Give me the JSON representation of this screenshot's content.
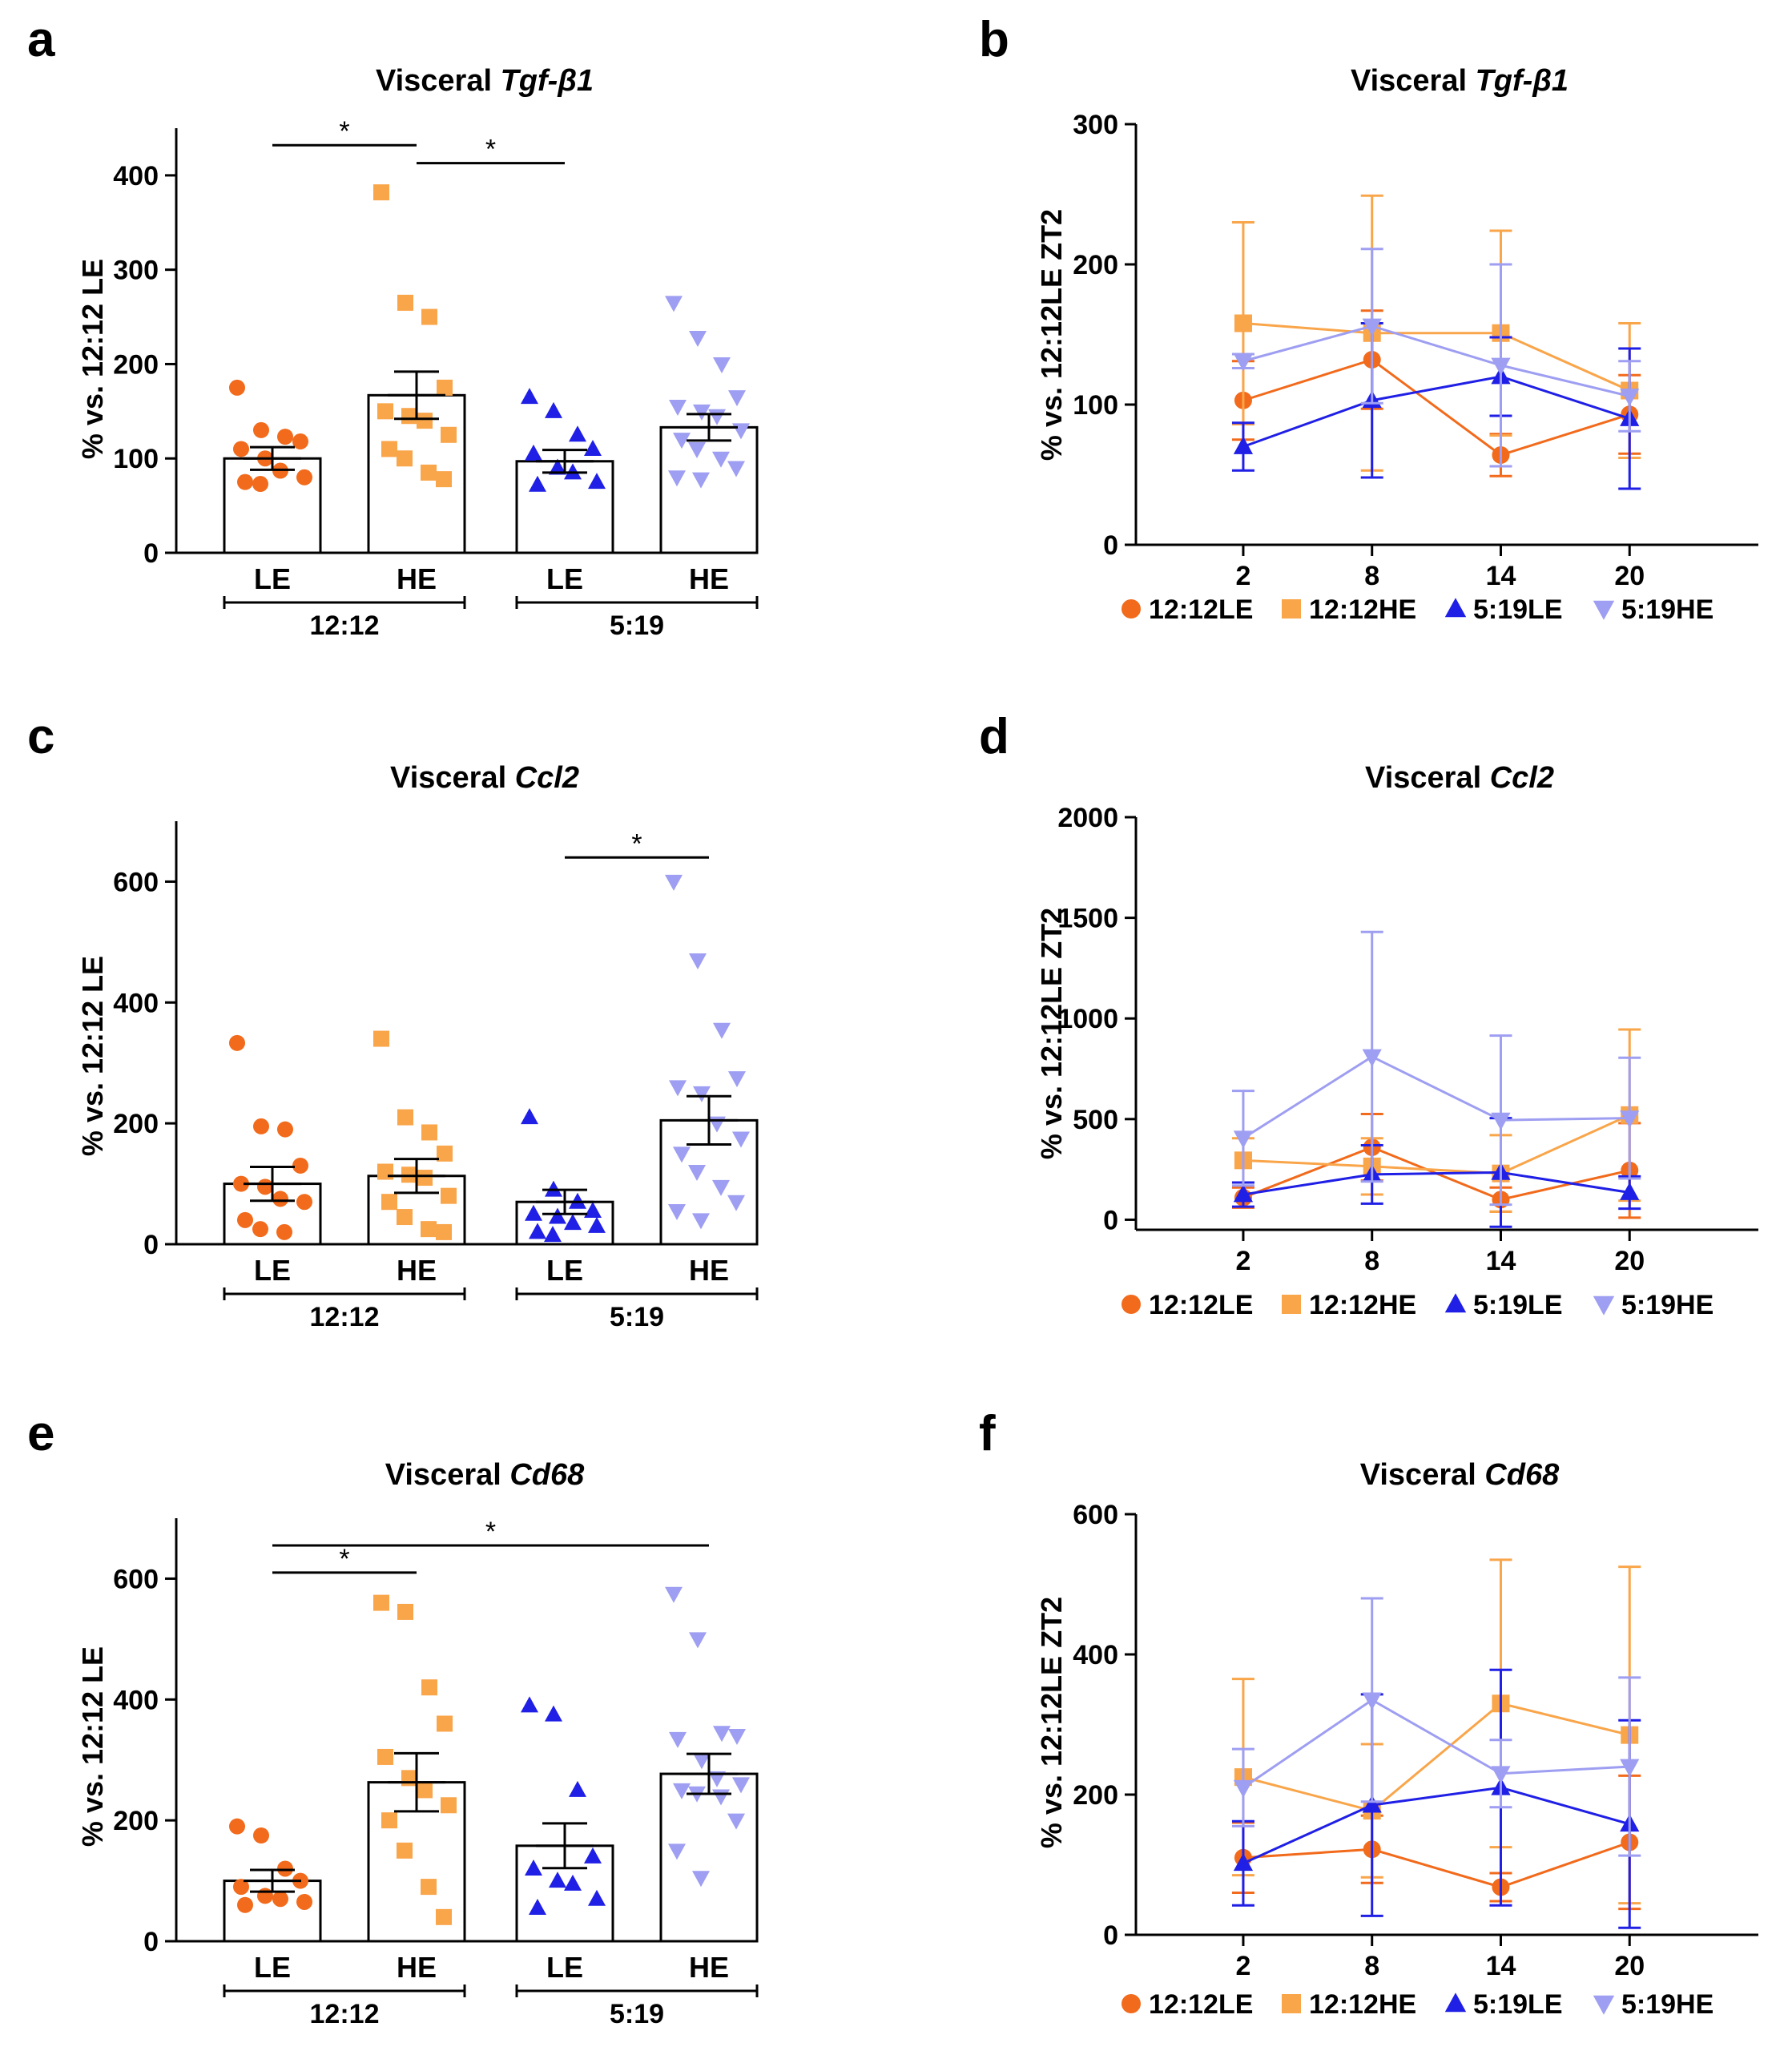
{
  "figure": {
    "colors": {
      "12:12LE": "#f26a1b",
      "12:12HE": "#f9a54a",
      "5:19LE": "#1f1fe6",
      "5:19HE": "#9e9ef2",
      "axis": "#000000"
    },
    "legend_labels": [
      "12:12LE",
      "12:12HE",
      "5:19LE",
      "5:19HE"
    ]
  },
  "chart_data": [
    {
      "panel": "a",
      "type": "bar",
      "title_prefix": "Visceral ",
      "title_gene": "Tgf-β1",
      "ylabel": "% vs. 12:12 LE",
      "ylim": [
        0,
        450
      ],
      "yticks": [
        0,
        100,
        200,
        300,
        400
      ],
      "categories": [
        "LE",
        "HE",
        "LE",
        "HE"
      ],
      "groups": [
        {
          "label": "12:12",
          "span": [
            0,
            1
          ]
        },
        {
          "label": "5:19",
          "span": [
            2,
            3
          ]
        }
      ],
      "markers": [
        "circle",
        "square",
        "triangle",
        "triangle-down"
      ],
      "series_keys": [
        "12:12LE",
        "12:12HE",
        "5:19LE",
        "5:19HE"
      ],
      "means": [
        100,
        167,
        97,
        133
      ],
      "sem": [
        12,
        25,
        12,
        14
      ],
      "points": [
        [
          175,
          130,
          123,
          118,
          110,
          100,
          87,
          80,
          75,
          73
        ],
        [
          382,
          265,
          250,
          175,
          150,
          145,
          140,
          125,
          110,
          100,
          85,
          78
        ],
        [
          165,
          150,
          125,
          110,
          105,
          90,
          85,
          75,
          72
        ],
        [
          265,
          228,
          200,
          165,
          155,
          150,
          145,
          130,
          120,
          110,
          100,
          90,
          80,
          78
        ]
      ],
      "significance": [
        {
          "from": 0,
          "to": 1,
          "y": 432,
          "label": "*"
        },
        {
          "from": 1,
          "to": 2,
          "y": 413,
          "label": "*"
        }
      ]
    },
    {
      "panel": "b",
      "type": "line",
      "title_prefix": "Visceral ",
      "title_gene": "Tgf-β1",
      "ylabel": "% vs. 12:12LE ZT2",
      "xlim": [
        -3,
        26
      ],
      "ylim": [
        0,
        300
      ],
      "yticks": [
        0,
        100,
        200,
        300
      ],
      "x": [
        2,
        8,
        14,
        20
      ],
      "series": [
        {
          "name": "12:12LE",
          "marker": "circle",
          "values": [
            103,
            132,
            64,
            93
          ],
          "err": [
            28,
            35,
            15,
            28
          ]
        },
        {
          "name": "12:12HE",
          "marker": "square",
          "values": [
            158,
            151,
            151,
            110
          ],
          "err": [
            72,
            98,
            73,
            48
          ]
        },
        {
          "name": "5:19LE",
          "marker": "triangle",
          "values": [
            70,
            103,
            120,
            90
          ],
          "err": [
            17,
            55,
            28,
            50
          ]
        },
        {
          "name": "5:19HE",
          "marker": "triangle-down",
          "values": [
            131,
            156,
            128,
            106
          ],
          "err": [
            5,
            55,
            72,
            25
          ]
        }
      ]
    },
    {
      "panel": "c",
      "type": "bar",
      "title_prefix": "Visceral ",
      "title_gene": "Ccl2",
      "ylabel": "% vs. 12:12 LE",
      "ylim": [
        0,
        700
      ],
      "yticks": [
        0,
        200,
        400,
        600
      ],
      "categories": [
        "LE",
        "HE",
        "LE",
        "HE"
      ],
      "groups": [
        {
          "label": "12:12",
          "span": [
            0,
            1
          ]
        },
        {
          "label": "5:19",
          "span": [
            2,
            3
          ]
        }
      ],
      "markers": [
        "circle",
        "square",
        "triangle",
        "triangle-down"
      ],
      "series_keys": [
        "12:12LE",
        "12:12HE",
        "5:19LE",
        "5:19HE"
      ],
      "means": [
        100,
        113,
        70,
        205
      ],
      "sem": [
        28,
        28,
        20,
        40
      ],
      "points": [
        [
          333,
          195,
          190,
          130,
          100,
          95,
          75,
          70,
          40,
          25,
          20
        ],
        [
          340,
          210,
          185,
          150,
          120,
          115,
          110,
          80,
          70,
          45,
          25,
          20
        ],
        [
          210,
          90,
          70,
          55,
          50,
          45,
          35,
          30,
          20,
          15
        ],
        [
          600,
          470,
          355,
          275,
          260,
          250,
          200,
          175,
          150,
          120,
          95,
          70,
          55,
          40
        ]
      ],
      "significance": [
        {
          "from": 2,
          "to": 3,
          "y": 640,
          "label": "*"
        }
      ]
    },
    {
      "panel": "d",
      "type": "line",
      "title_prefix": "Visceral ",
      "title_gene": "Ccl2",
      "ylabel": "% vs. 12:12LE ZT2",
      "xlim": [
        -3,
        26
      ],
      "ylim": [
        -50,
        2000
      ],
      "yticks": [
        0,
        500,
        1000,
        1500,
        2000
      ],
      "x": [
        2,
        8,
        14,
        20
      ],
      "series": [
        {
          "name": "12:12LE",
          "marker": "circle",
          "values": [
            110,
            360,
            100,
            245
          ],
          "err": [
            50,
            165,
            60,
            235
          ]
        },
        {
          "name": "12:12HE",
          "marker": "square",
          "values": [
            295,
            265,
            230,
            520
          ],
          "err": [
            110,
            140,
            190,
            425
          ]
        },
        {
          "name": "5:19LE",
          "marker": "triangle",
          "values": [
            125,
            225,
            235,
            135
          ],
          "err": [
            60,
            145,
            270,
            80
          ]
        },
        {
          "name": "5:19HE",
          "marker": "triangle-down",
          "values": [
            405,
            810,
            495,
            505
          ],
          "err": [
            235,
            620,
            420,
            300
          ]
        }
      ]
    },
    {
      "panel": "e",
      "type": "bar",
      "title_prefix": "Visceral ",
      "title_gene": "Cd68",
      "ylabel": "% vs. 12:12 LE",
      "ylim": [
        0,
        700
      ],
      "yticks": [
        0,
        200,
        400,
        600
      ],
      "categories": [
        "LE",
        "HE",
        "LE",
        "HE"
      ],
      "groups": [
        {
          "label": "12:12",
          "span": [
            0,
            1
          ]
        },
        {
          "label": "5:19",
          "span": [
            2,
            3
          ]
        }
      ],
      "markers": [
        "circle",
        "square",
        "triangle",
        "triangle-down"
      ],
      "series_keys": [
        "12:12LE",
        "12:12HE",
        "5:19LE",
        "5:19HE"
      ],
      "means": [
        100,
        263,
        158,
        277
      ],
      "sem": [
        18,
        48,
        37,
        33
      ],
      "points": [
        [
          190,
          175,
          120,
          100,
          90,
          75,
          70,
          65,
          60
        ],
        [
          560,
          545,
          420,
          360,
          305,
          270,
          250,
          225,
          200,
          150,
          90,
          40
        ],
        [
          390,
          375,
          250,
          140,
          120,
          100,
          95,
          70,
          55
        ],
        [
          575,
          500,
          345,
          340,
          335,
          300,
          270,
          260,
          250,
          245,
          240,
          200,
          150,
          105
        ]
      ],
      "significance": [
        {
          "from": 0,
          "to": 3,
          "y": 655,
          "label": "*"
        },
        {
          "from": 0,
          "to": 1,
          "y": 610,
          "label": "*"
        }
      ]
    },
    {
      "panel": "f",
      "type": "line",
      "title_prefix": "Visceral ",
      "title_gene": "Cd68",
      "ylabel": "% vs. 12:12LE ZT2",
      "xlim": [
        -3,
        26
      ],
      "ylim": [
        0,
        600
      ],
      "yticks": [
        0,
        200,
        400,
        600
      ],
      "x": [
        2,
        8,
        14,
        20
      ],
      "series": [
        {
          "name": "12:12LE",
          "marker": "circle",
          "values": [
            110,
            122,
            68,
            132
          ],
          "err": [
            50,
            48,
            20,
            95
          ]
        },
        {
          "name": "12:12HE",
          "marker": "square",
          "values": [
            225,
            177,
            330,
            285
          ],
          "err": [
            140,
            95,
            205,
            240
          ]
        },
        {
          "name": "5:19LE",
          "marker": "triangle",
          "values": [
            102,
            185,
            210,
            158
          ],
          "err": [
            60,
            158,
            168,
            148
          ]
        },
        {
          "name": "5:19HE",
          "marker": "triangle-down",
          "values": [
            210,
            335,
            230,
            240
          ],
          "err": [
            55,
            145,
            48,
            127
          ]
        }
      ]
    }
  ]
}
